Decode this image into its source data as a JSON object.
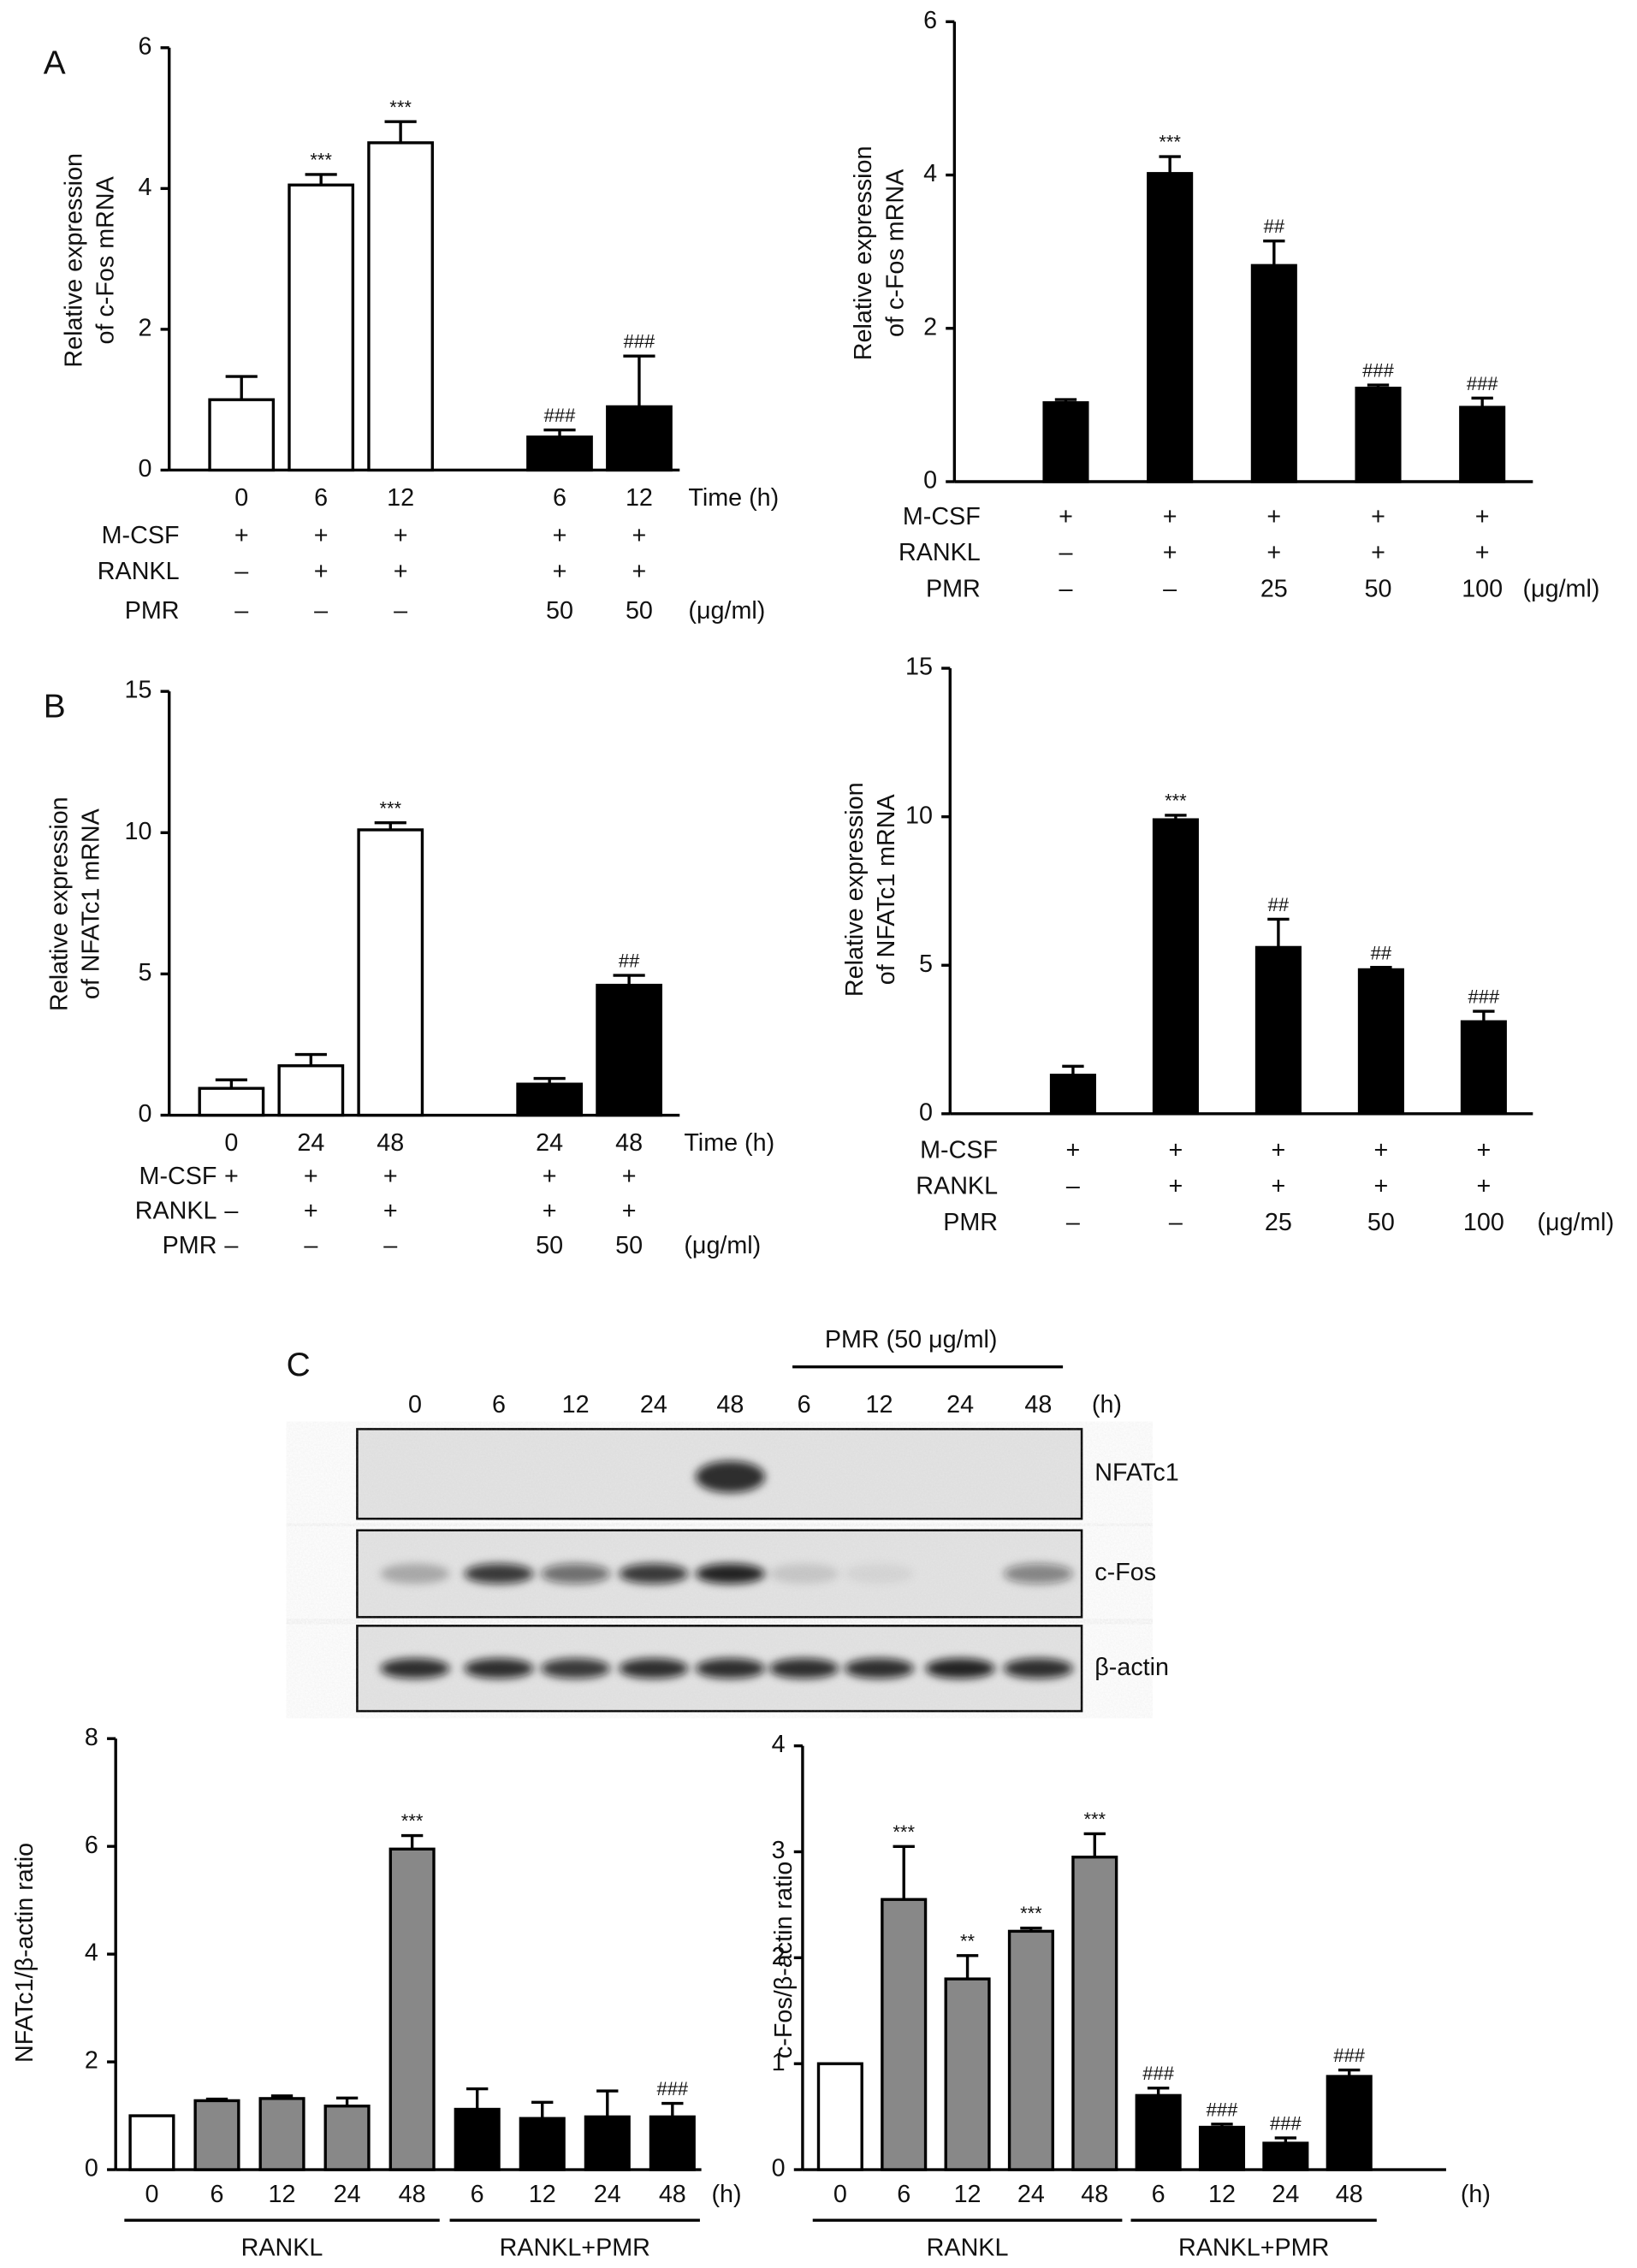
{
  "panel_labels": [
    "A",
    "B",
    "C"
  ],
  "blot": {
    "header": "PMR (50 μg/ml)",
    "lanes": [
      "0",
      "6",
      "12",
      "24",
      "48",
      "6",
      "12",
      "24",
      "48"
    ],
    "unit": "(h)",
    "bands": [
      "NFATc1",
      "c-Fos",
      "β-actin"
    ]
  },
  "chart_data": [
    {
      "type": "bar",
      "ylabel": [
        "Relative expression",
        "of c-Fos mRNA"
      ],
      "categories": [
        "0",
        "6",
        "12",
        null,
        "6",
        "12"
      ],
      "values": [
        1.0,
        4.05,
        4.65,
        null,
        0.47,
        0.9
      ],
      "errors": [
        0.33,
        0.15,
        0.3,
        null,
        0.1,
        0.72
      ],
      "annotations": [
        null,
        "***",
        "***",
        null,
        "###",
        "###"
      ],
      "colors": [
        "#ffffff",
        "#ffffff",
        "#ffffff",
        null,
        "#000000",
        "#000000"
      ],
      "ylim": [
        0,
        6
      ],
      "yticks": [
        0,
        2,
        4,
        6
      ],
      "x_unit": "Time (h)",
      "conditions": [
        {
          "name": "M-CSF",
          "values": [
            "+",
            "+",
            "+",
            null,
            "+",
            "+"
          ]
        },
        {
          "name": "RANKL",
          "values": [
            "–",
            "+",
            "+",
            null,
            "+",
            "+"
          ]
        },
        {
          "name": "PMR",
          "values": [
            "–",
            "–",
            "–",
            null,
            "50",
            "50"
          ]
        }
      ],
      "conditions_unit": "(μg/ml)"
    },
    {
      "type": "bar",
      "ylabel": [
        "Relative expression",
        "of c-Fos mRNA"
      ],
      "values": [
        1.03,
        4.02,
        2.82,
        1.22,
        0.97
      ],
      "errors": [
        0.04,
        0.22,
        0.32,
        0.04,
        0.12
      ],
      "annotations": [
        null,
        "***",
        "##",
        "###",
        "###"
      ],
      "colors": [
        "#000000",
        "#000000",
        "#000000",
        "#000000",
        "#000000"
      ],
      "ylim": [
        0,
        6
      ],
      "yticks": [
        0,
        2,
        4,
        6
      ],
      "conditions": [
        {
          "name": "M-CSF",
          "values": [
            "+",
            "+",
            "+",
            "+",
            "+"
          ]
        },
        {
          "name": "RANKL",
          "values": [
            "–",
            "+",
            "+",
            "+",
            "+"
          ]
        },
        {
          "name": "PMR",
          "values": [
            "–",
            "–",
            "25",
            "50",
            "100"
          ]
        }
      ],
      "conditions_unit": "(μg/ml)"
    },
    {
      "type": "bar",
      "ylabel": [
        "Relative expression",
        "of NFATc1 mRNA"
      ],
      "categories": [
        "0",
        "24",
        "48",
        null,
        "24",
        "48"
      ],
      "values": [
        0.95,
        1.75,
        10.1,
        null,
        1.1,
        4.6
      ],
      "errors": [
        0.3,
        0.4,
        0.25,
        null,
        0.2,
        0.35
      ],
      "annotations": [
        null,
        null,
        "***",
        null,
        null,
        "##"
      ],
      "colors": [
        "#ffffff",
        "#ffffff",
        "#ffffff",
        null,
        "#000000",
        "#000000"
      ],
      "ylim": [
        0,
        15
      ],
      "yticks": [
        0,
        5,
        10,
        15
      ],
      "x_unit": "Time (h)",
      "conditions": [
        {
          "name": "M-CSF",
          "values": [
            "+",
            "+",
            "+",
            null,
            "+",
            "+"
          ]
        },
        {
          "name": "RANKL",
          "values": [
            "–",
            "+",
            "+",
            null,
            "+",
            "+"
          ]
        },
        {
          "name": "PMR",
          "values": [
            "–",
            "–",
            "–",
            null,
            "50",
            "50"
          ]
        }
      ],
      "conditions_unit": "(μg/ml)"
    },
    {
      "type": "bar",
      "ylabel": [
        "Relative expression",
        "of NFATc1 mRNA"
      ],
      "values": [
        1.3,
        9.9,
        5.6,
        4.85,
        3.1
      ],
      "errors": [
        0.3,
        0.15,
        0.95,
        0.08,
        0.35
      ],
      "annotations": [
        null,
        "***",
        "##",
        "##",
        "###"
      ],
      "colors": [
        "#000000",
        "#000000",
        "#000000",
        "#000000",
        "#000000"
      ],
      "ylim": [
        0,
        15
      ],
      "yticks": [
        0,
        5,
        10,
        15
      ],
      "conditions": [
        {
          "name": "M-CSF",
          "values": [
            "+",
            "+",
            "+",
            "+",
            "+"
          ]
        },
        {
          "name": "RANKL",
          "values": [
            "–",
            "+",
            "+",
            "+",
            "+"
          ]
        },
        {
          "name": "PMR",
          "values": [
            "–",
            "–",
            "25",
            "50",
            "100"
          ]
        }
      ],
      "conditions_unit": "(μg/ml)"
    },
    {
      "type": "bar",
      "ylabel": [
        "NFATc1/β-actin ratio"
      ],
      "categories": [
        "0",
        "6",
        "12",
        "24",
        "48",
        "6",
        "12",
        "24",
        "48"
      ],
      "values": [
        1.0,
        1.28,
        1.32,
        1.18,
        5.95,
        1.12,
        0.95,
        0.98,
        0.98
      ],
      "errors": [
        0,
        0.03,
        0.05,
        0.15,
        0.25,
        0.38,
        0.3,
        0.48,
        0.25
      ],
      "annotations": [
        null,
        null,
        null,
        null,
        "***",
        null,
        null,
        null,
        "###"
      ],
      "colors": [
        "#ffffff",
        "#888888",
        "#888888",
        "#888888",
        "#888888",
        "#000000",
        "#000000",
        "#000000",
        "#000000"
      ],
      "ylim": [
        0,
        8
      ],
      "yticks": [
        0,
        2,
        4,
        6,
        8
      ],
      "x_unit": "(h)",
      "groups": [
        {
          "name": "RANKL",
          "count": 5
        },
        {
          "name": "RANKL+PMR",
          "count": 4
        }
      ]
    },
    {
      "type": "bar",
      "ylabel": [
        "c-Fos/β-actin ratio"
      ],
      "categories": [
        "0",
        "6",
        "12",
        "24",
        "48",
        "6",
        "12",
        "24",
        "48"
      ],
      "values": [
        1.0,
        2.55,
        1.8,
        2.25,
        2.95,
        0.7,
        0.4,
        0.25,
        0.88
      ],
      "errors": [
        0,
        0.5,
        0.22,
        0.03,
        0.22,
        0.07,
        0.03,
        0.05,
        0.06
      ],
      "annotations": [
        null,
        "***",
        "**",
        "***",
        "***",
        "###",
        "###",
        "###",
        "###"
      ],
      "colors": [
        "#ffffff",
        "#888888",
        "#888888",
        "#888888",
        "#888888",
        "#000000",
        "#000000",
        "#000000",
        "#000000"
      ],
      "ylim": [
        0,
        4
      ],
      "yticks": [
        0,
        1,
        2,
        3,
        4
      ],
      "x_unit": "(h)",
      "groups": [
        {
          "name": "RANKL",
          "count": 5
        },
        {
          "name": "RANKL+PMR",
          "count": 4
        }
      ]
    }
  ]
}
